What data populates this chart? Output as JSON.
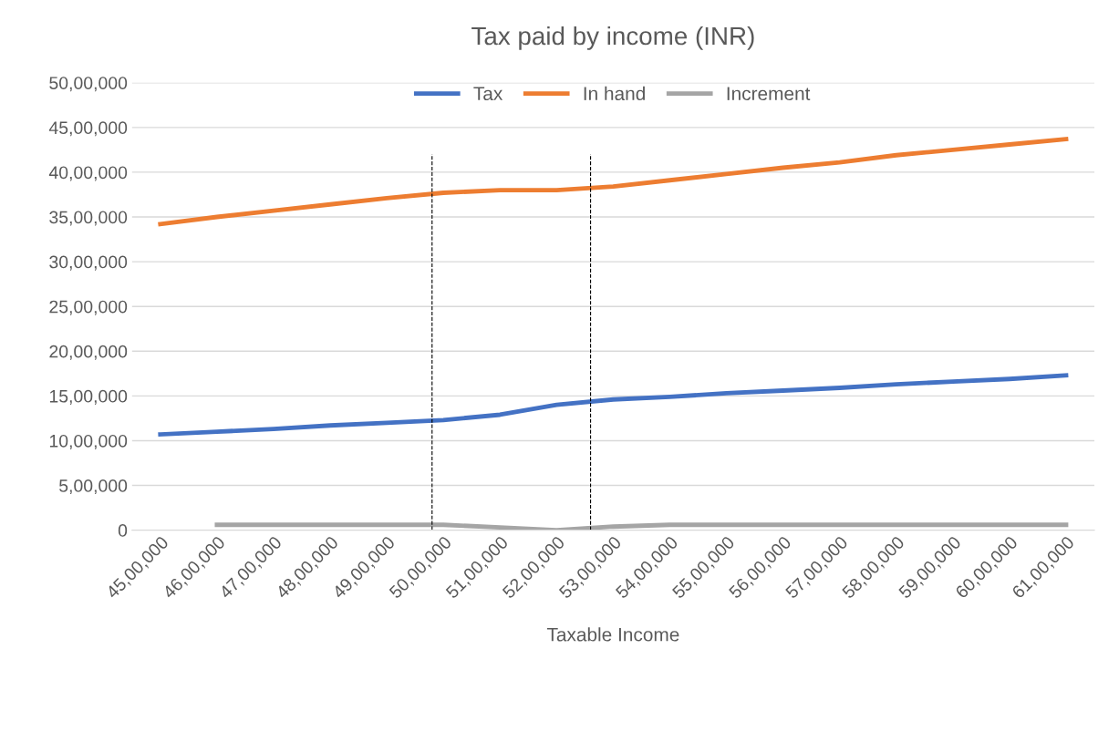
{
  "chart_data": {
    "type": "line",
    "title": "Tax paid by income (INR)",
    "xlabel": "Taxable Income",
    "x": [
      4500000,
      4600000,
      4700000,
      4800000,
      4900000,
      5000000,
      5100000,
      5200000,
      5300000,
      5400000,
      5500000,
      5600000,
      5700000,
      5800000,
      5900000,
      6000000,
      6100000
    ],
    "xlim": [
      4450000,
      6150000
    ],
    "xticks": [
      {
        "value": 4500000,
        "label": "45,00,000"
      },
      {
        "value": 4600000,
        "label": "46,00,000"
      },
      {
        "value": 4700000,
        "label": "47,00,000"
      },
      {
        "value": 4800000,
        "label": "48,00,000"
      },
      {
        "value": 4900000,
        "label": "49,00,000"
      },
      {
        "value": 5000000,
        "label": "50,00,000"
      },
      {
        "value": 5100000,
        "label": "51,00,000"
      },
      {
        "value": 5200000,
        "label": "52,00,000"
      },
      {
        "value": 5300000,
        "label": "53,00,000"
      },
      {
        "value": 5400000,
        "label": "54,00,000"
      },
      {
        "value": 5500000,
        "label": "55,00,000"
      },
      {
        "value": 5600000,
        "label": "56,00,000"
      },
      {
        "value": 5700000,
        "label": "57,00,000"
      },
      {
        "value": 5800000,
        "label": "58,00,000"
      },
      {
        "value": 5900000,
        "label": "59,00,000"
      },
      {
        "value": 6000000,
        "label": "60,00,000"
      },
      {
        "value": 6100000,
        "label": "61,00,000"
      }
    ],
    "ylim": [
      0,
      5000000
    ],
    "yticks": [
      0,
      {
        "value": 500000,
        "label": "5,00,000"
      },
      {
        "value": 1000000,
        "label": "10,00,000"
      },
      {
        "value": 1500000,
        "label": "15,00,000"
      },
      {
        "value": 2000000,
        "label": "20,00,000"
      },
      {
        "value": 2500000,
        "label": "25,00,000"
      },
      {
        "value": 3000000,
        "label": "30,00,000"
      },
      {
        "value": 3500000,
        "label": "35,00,000"
      },
      {
        "value": 4000000,
        "label": "40,00,000"
      },
      {
        "value": 4500000,
        "label": "45,00,000"
      },
      {
        "value": 5000000,
        "label": "50,00,000"
      }
    ],
    "series": [
      {
        "name": "Tax",
        "color": "#4472c4",
        "values": [
          1070000,
          1100000,
          1130000,
          1170000,
          1200000,
          1230000,
          1290000,
          1400000,
          1460000,
          1490000,
          1530000,
          1560000,
          1590000,
          1630000,
          1660000,
          1690000,
          1730000
        ]
      },
      {
        "name": "In hand",
        "color": "#ed7d31",
        "values": [
          3420000,
          3500000,
          3570000,
          3640000,
          3710000,
          3770000,
          3800000,
          3800000,
          3840000,
          3910000,
          3980000,
          4050000,
          4110000,
          4190000,
          4250000,
          4310000,
          4370000
        ]
      },
      {
        "name": "Increment",
        "color": "#a5a5a5",
        "values": [
          null,
          60000,
          60000,
          60000,
          60000,
          60000,
          30000,
          0,
          40000,
          60000,
          60000,
          60000,
          60000,
          60000,
          60000,
          60000,
          60000
        ]
      }
    ],
    "ref_lines": [
      {
        "axis": "x",
        "value": 4980000,
        "color": "#000000",
        "line_style": "dashed"
      },
      {
        "axis": "x",
        "value": 5260000,
        "color": "#000000",
        "line_style": "dashed"
      }
    ],
    "grid": "y",
    "legend": "top",
    "marker": "none",
    "line_style": "solid"
  }
}
